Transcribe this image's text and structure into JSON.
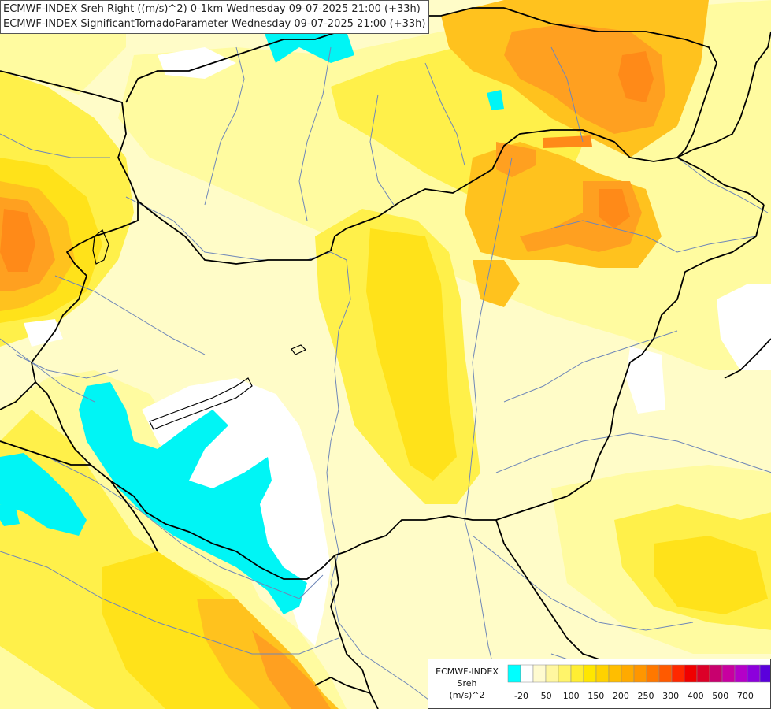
{
  "header": {
    "line1": "ECMWF-INDEX Sreh Right ((m/s)^2) 0-1km Wednesday 09-07-2025 21:00 (+33h)",
    "line2": "ECMWF-INDEX SignificantTornadoParameter Wednesday 09-07-2025 21:00 (+33h)"
  },
  "legend": {
    "source": "ECMWF-INDEX",
    "variable": "Sreh",
    "unit": "(m/s)^2",
    "colors": [
      "#00ffff",
      "#ffffff",
      "#fffbd0",
      "#fff7a0",
      "#fff46a",
      "#ffee33",
      "#ffe600",
      "#ffd200",
      "#ffbe00",
      "#ffaa00",
      "#ff9600",
      "#ff7800",
      "#ff5a00",
      "#ff2800",
      "#f00000",
      "#dc0028",
      "#c8006e",
      "#c800a0",
      "#b400c8",
      "#8c00dc",
      "#5a00dc",
      "#3200b4",
      "#14008c"
    ],
    "tick_labels": [
      "-20",
      "50",
      "100",
      "150",
      "200",
      "250",
      "300",
      "400",
      "500",
      "700"
    ]
  },
  "map": {
    "fill_colors": {
      "base": "#fffcc8",
      "light": "#fffba0",
      "yellow": "#fff04a",
      "gold": "#ffe21a",
      "orange_light": "#ffc21e",
      "orange": "#ffa020",
      "orange_deep": "#ff8a18",
      "cyan": "#00f5f5",
      "white": "#ffffff"
    },
    "line_colors": {
      "border": "#000000",
      "river": "#6f87b8"
    }
  }
}
